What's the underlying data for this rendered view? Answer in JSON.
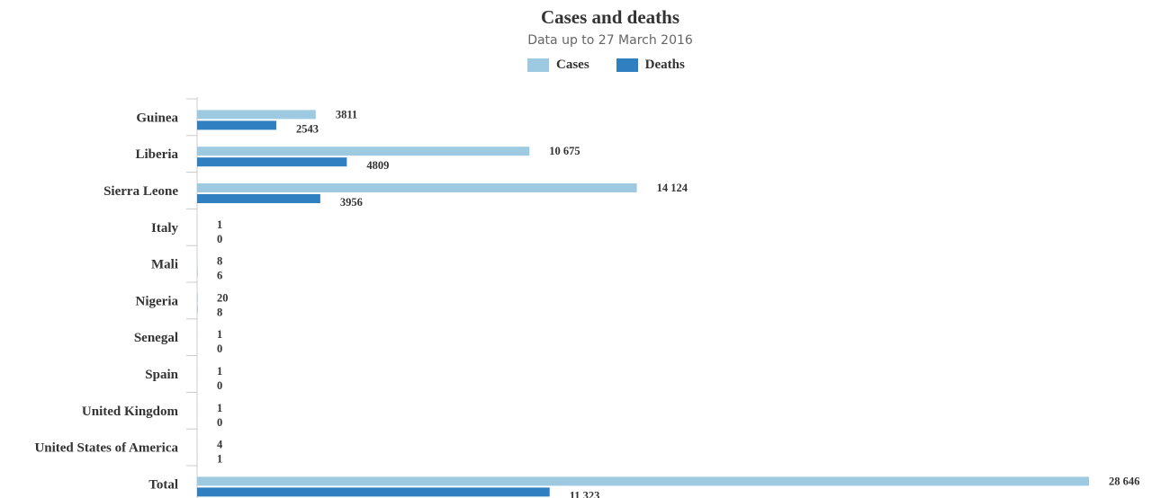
{
  "colors": {
    "cases": "#9ecae1",
    "deaths": "#2f7fc1"
  },
  "chart_data": {
    "type": "bar",
    "orientation": "horizontal",
    "title": "Cases and deaths",
    "subtitle": "Data up to 27 March 2016",
    "legend_position": "top",
    "categories": [
      "Guinea",
      "Liberia",
      "Sierra Leone",
      "Italy",
      "Mali",
      "Nigeria",
      "Senegal",
      "Spain",
      "United Kingdom",
      "United States of America",
      "Total"
    ],
    "series": [
      {
        "name": "Cases",
        "values": [
          3811,
          10675,
          14124,
          1,
          8,
          20,
          1,
          1,
          1,
          4,
          28646
        ],
        "labels": [
          "3811",
          "10 675",
          "14 124",
          "1",
          "8",
          "20",
          "1",
          "1",
          "1",
          "4",
          "28 646"
        ]
      },
      {
        "name": "Deaths",
        "values": [
          2543,
          4809,
          3956,
          0,
          6,
          8,
          0,
          0,
          0,
          1,
          11323
        ],
        "labels": [
          "2543",
          "4809",
          "3956",
          "0",
          "6",
          "8",
          "0",
          "0",
          "0",
          "1",
          "11 323"
        ]
      }
    ],
    "xlim": [
      0,
      28646
    ],
    "grid": false
  }
}
